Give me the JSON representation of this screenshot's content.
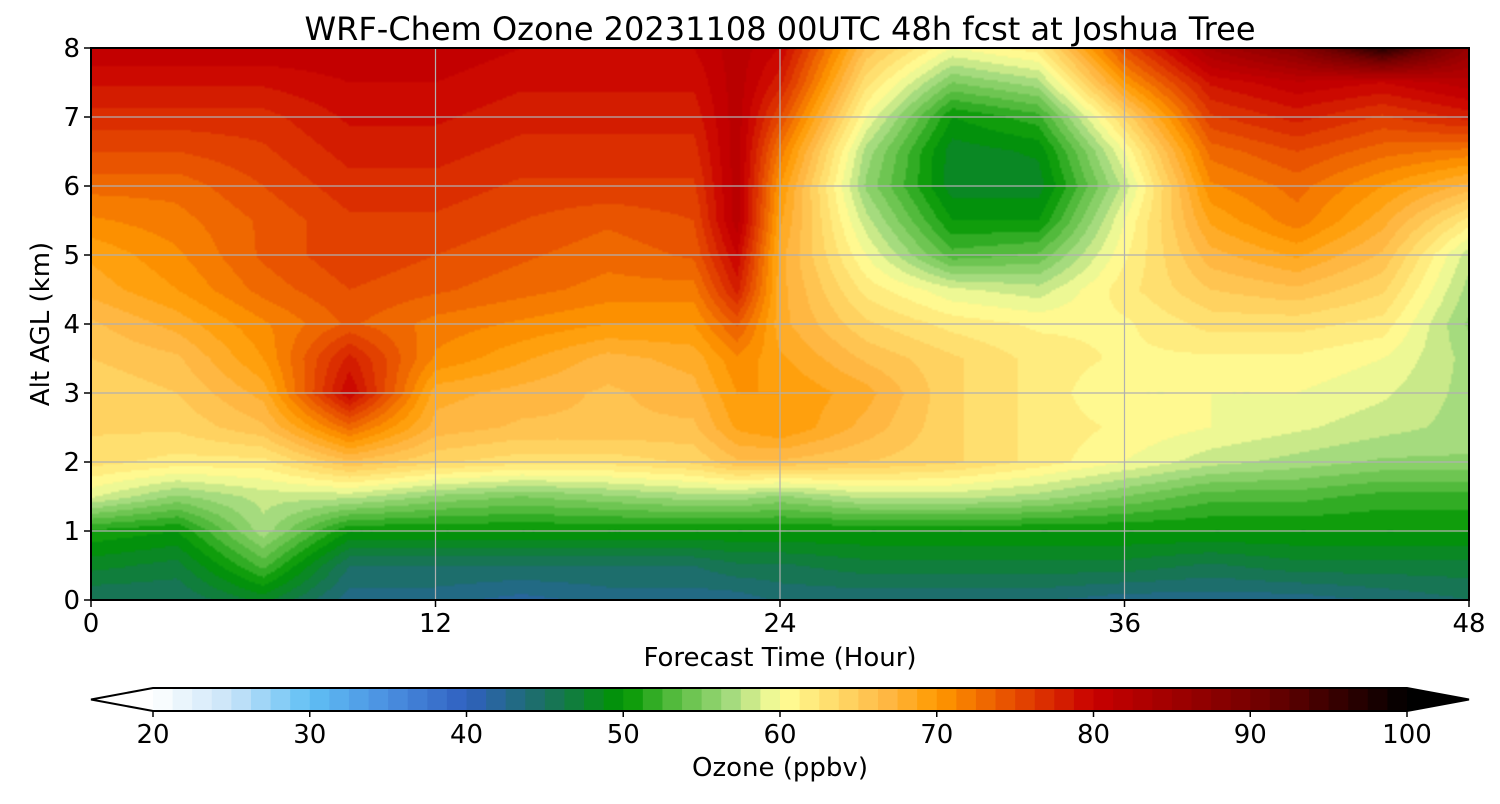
{
  "chart_data": {
    "type": "heatmap",
    "title": "WRF-Chem Ozone  20231108 00UTC 48h fcst at Joshua Tree",
    "xlabel": "Forecast Time (Hour)",
    "ylabel": "Alt AGL (km)",
    "xlim": [
      0,
      48
    ],
    "ylim": [
      0,
      8
    ],
    "xticks": [
      0,
      12,
      24,
      36,
      48
    ],
    "yticks": [
      0,
      1,
      2,
      3,
      4,
      5,
      6,
      7,
      8
    ],
    "grid": true,
    "x": [
      0,
      3,
      6,
      9,
      12,
      15,
      18,
      21,
      22.5,
      24,
      27,
      30,
      33,
      36,
      39,
      42,
      45,
      48
    ],
    "y": [
      0,
      0.5,
      1,
      1.5,
      2,
      2.5,
      3,
      3.5,
      4,
      4.5,
      5,
      5.5,
      6,
      6.5,
      7,
      7.5,
      8
    ],
    "z": [
      [
        45,
        45,
        48,
        43,
        43,
        42,
        43,
        43,
        43,
        44,
        44,
        44,
        44,
        43,
        43,
        43,
        44,
        45
      ],
      [
        48,
        47,
        53,
        45,
        45,
        45,
        45,
        45,
        46,
        46,
        47,
        47,
        47,
        47,
        46,
        47,
        47,
        47
      ],
      [
        51,
        50,
        57,
        50,
        50,
        50,
        50,
        50,
        50,
        50,
        50,
        50,
        50,
        50,
        50,
        50,
        50,
        50
      ],
      [
        59,
        56,
        58,
        58,
        56,
        55,
        56,
        57,
        57,
        56,
        58,
        58,
        57,
        55,
        53,
        53,
        52,
        52
      ],
      [
        63,
        62,
        62,
        66,
        64,
        63,
        63,
        64,
        66,
        66,
        65,
        64,
        62,
        60,
        58,
        57,
        56,
        56
      ],
      [
        64,
        64,
        66,
        73,
        67,
        66,
        66,
        66,
        69,
        70,
        67,
        64,
        62,
        61,
        60,
        59,
        58,
        57
      ],
      [
        64,
        65,
        68,
        80,
        68,
        67,
        66,
        67,
        70,
        70,
        68,
        64,
        62,
        60,
        60,
        60,
        59,
        57
      ],
      [
        65,
        66,
        70,
        78,
        71,
        69,
        67,
        68,
        71,
        69,
        66,
        64,
        62,
        61,
        61,
        61,
        60,
        57
      ],
      [
        66,
        68,
        71,
        74,
        72,
        71,
        70,
        70,
        74,
        68,
        64,
        62,
        61,
        61,
        63,
        63,
        62,
        56
      ],
      [
        68,
        70,
        73,
        75,
        74,
        73,
        72,
        72,
        78,
        68,
        62,
        59,
        58,
        62,
        65,
        66,
        64,
        57
      ],
      [
        69,
        71,
        74,
        76,
        75,
        74,
        73,
        74,
        80,
        68,
        60,
        53,
        54,
        61,
        67,
        69,
        66,
        58
      ],
      [
        71,
        72,
        74,
        76,
        76,
        75,
        74,
        75,
        82,
        69,
        58,
        50,
        50,
        60,
        69,
        72,
        68,
        62
      ],
      [
        73,
        73,
        75,
        77,
        77,
        76,
        76,
        76,
        82,
        70,
        56,
        48,
        48,
        58,
        71,
        73,
        70,
        67
      ],
      [
        75,
        75,
        76,
        78,
        78,
        77,
        77,
        77,
        82,
        72,
        57,
        48,
        49,
        60,
        73,
        75,
        73,
        72
      ],
      [
        77,
        77,
        77,
        79,
        79,
        78,
        78,
        78,
        82,
        75,
        60,
        50,
        52,
        64,
        76,
        78,
        76,
        78
      ],
      [
        79,
        79,
        79,
        80,
        80,
        79,
        79,
        79,
        82,
        78,
        63,
        55,
        57,
        70,
        79,
        81,
        80,
        82
      ],
      [
        81,
        81,
        81,
        81,
        81,
        80,
        80,
        80,
        82,
        80,
        66,
        60,
        62,
        75,
        84,
        88,
        97,
        86
      ]
    ],
    "colorbar": {
      "label": "Ozone  (ppbv)",
      "min": 20,
      "max": 100,
      "ticks": [
        20,
        30,
        40,
        50,
        60,
        70,
        80,
        90,
        100
      ],
      "extend": "both",
      "stops": [
        {
          "v": 20,
          "c": "#ffffff"
        },
        {
          "v": 25,
          "c": "#c8e4f8"
        },
        {
          "v": 30,
          "c": "#60bff5"
        },
        {
          "v": 35,
          "c": "#4a8fe0"
        },
        {
          "v": 40,
          "c": "#3060c0"
        },
        {
          "v": 45,
          "c": "#1a7060"
        },
        {
          "v": 50,
          "c": "#009600"
        },
        {
          "v": 53,
          "c": "#4fb93a"
        },
        {
          "v": 57,
          "c": "#a8dc80"
        },
        {
          "v": 60,
          "c": "#ffff99"
        },
        {
          "v": 63,
          "c": "#ffe070"
        },
        {
          "v": 67,
          "c": "#ffb640"
        },
        {
          "v": 70,
          "c": "#ff9a00"
        },
        {
          "v": 75,
          "c": "#e64a00"
        },
        {
          "v": 80,
          "c": "#c80000"
        },
        {
          "v": 90,
          "c": "#780000"
        },
        {
          "v": 100,
          "c": "#000000"
        }
      ]
    }
  }
}
